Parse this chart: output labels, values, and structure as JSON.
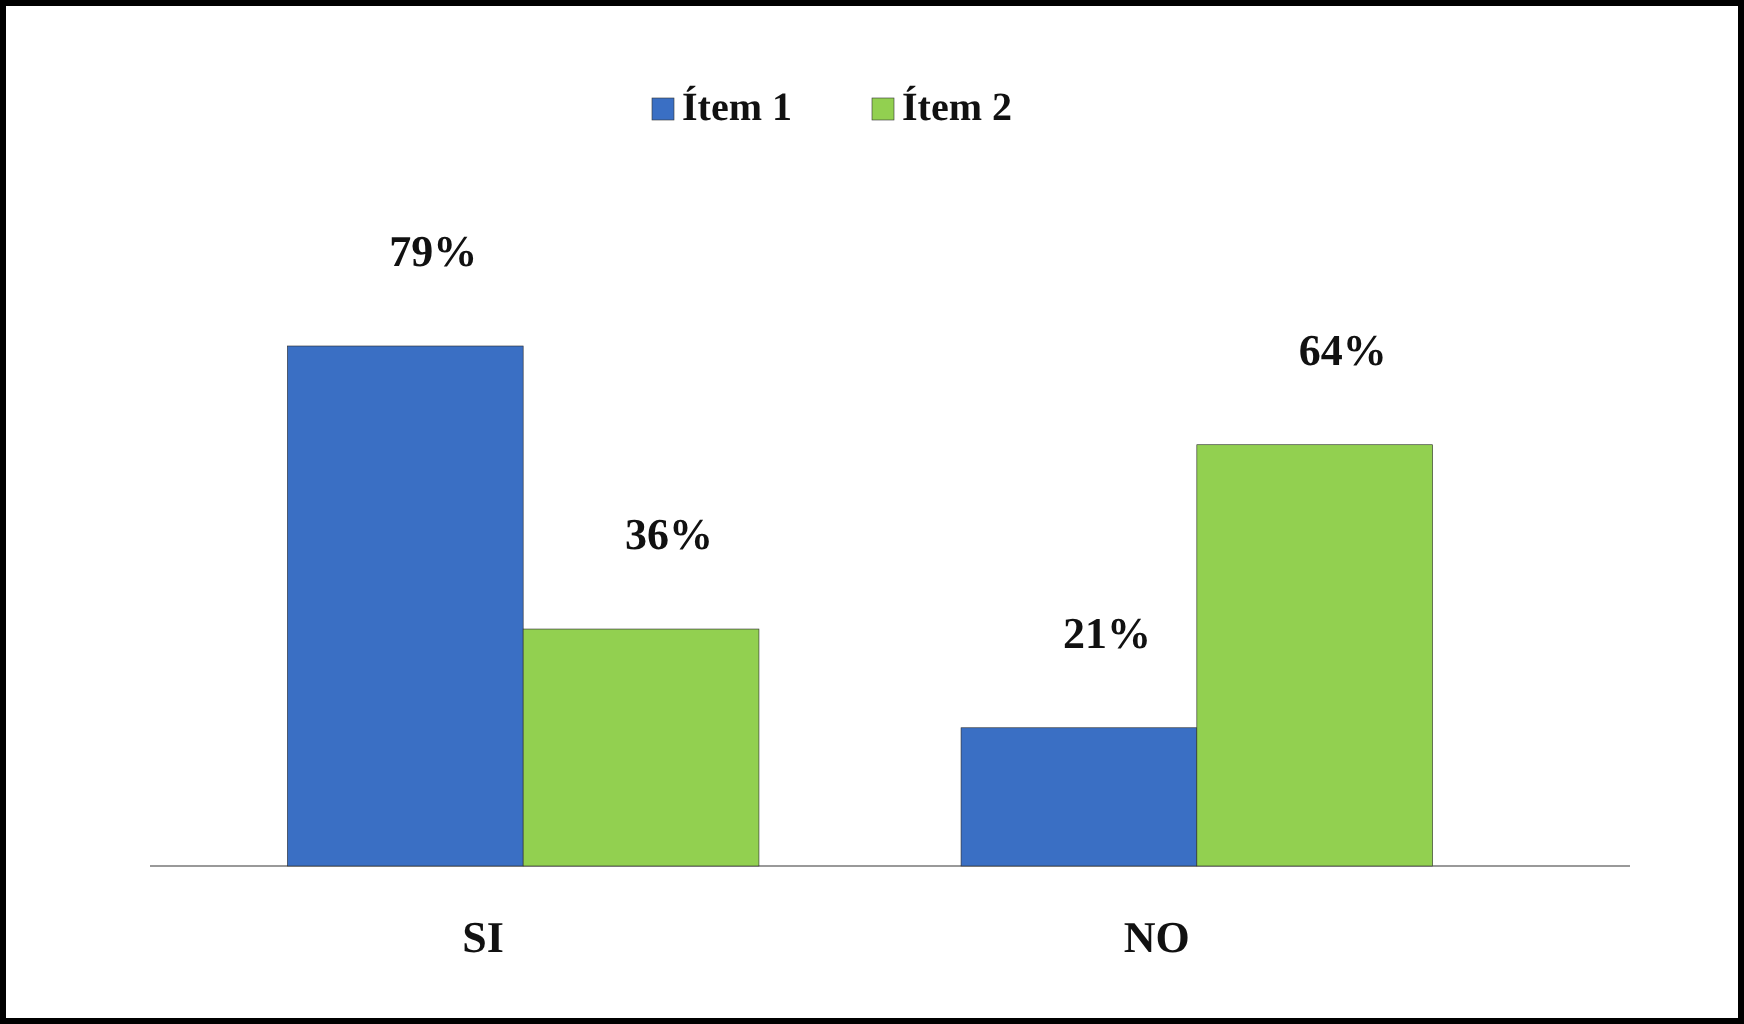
{
  "chart_data": {
    "type": "bar",
    "categories": [
      "SI",
      "NO"
    ],
    "legend": "top",
    "series": [
      {
        "name": "Ítem 1",
        "color": "#3a6fc4",
        "values": [
          79,
          21
        ],
        "value_labels": [
          "79%",
          "21%"
        ]
      },
      {
        "name": "Ítem 2",
        "color": "#92d050",
        "values": [
          36,
          64
        ],
        "value_labels": [
          "36%",
          "64%"
        ]
      }
    ]
  }
}
